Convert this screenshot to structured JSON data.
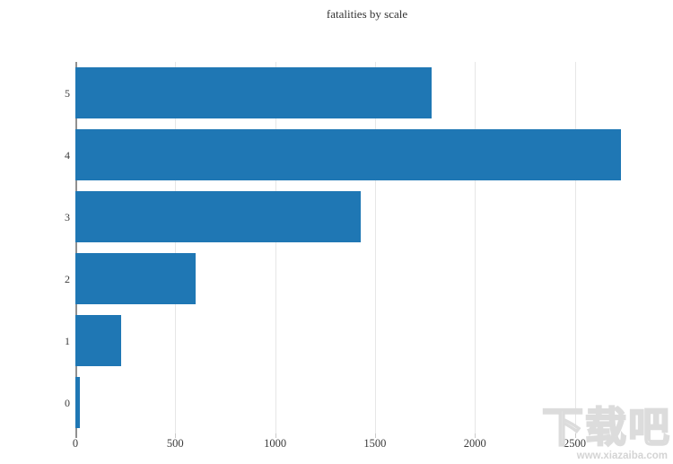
{
  "title": "fatalities by scale",
  "chart_data": {
    "type": "bar",
    "orientation": "horizontal",
    "title": "fatalities by scale",
    "categories": [
      "5",
      "4",
      "3",
      "2",
      "1",
      "0"
    ],
    "categories_order": "top_to_bottom",
    "values": [
      1785,
      2730,
      1430,
      600,
      230,
      22
    ],
    "xlabel": "",
    "ylabel": "",
    "xlim": [
      0,
      2920
    ],
    "x_ticks": [
      0,
      500,
      1000,
      1500,
      2000,
      2500
    ],
    "x_tick_labels": [
      "0",
      "500",
      "1000",
      "1500",
      "2000",
      "2500"
    ],
    "grid": "vertical-only",
    "legend": "none",
    "bar_color": "#1f77b4",
    "axis_color": "#909090",
    "grid_color": "#e6e6e6",
    "tick_color": "#c9c9c9",
    "label_color": "#3b3b3b"
  },
  "watermark": {
    "logo_text": "下载吧",
    "url_text": "www.xiazaiba.com"
  }
}
